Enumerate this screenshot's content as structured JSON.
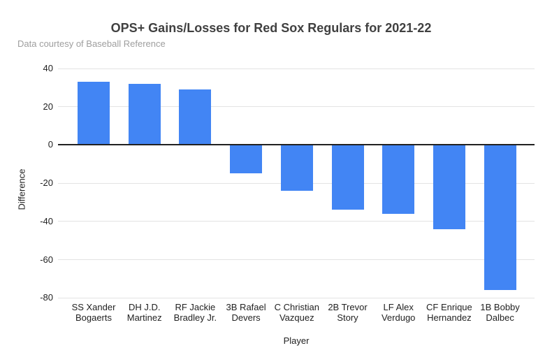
{
  "chart_data": {
    "type": "bar",
    "title": "OPS+ Gains/Losses for Red Sox Regulars for 2021-22",
    "subtitle": "Data courtesy of Baseball Reference",
    "categories": [
      "SS Xander Bogaerts",
      "DH J.D. Martinez",
      "RF Jackie Bradley Jr.",
      "3B Rafael Devers",
      "C Christian Vazquez",
      "2B Trevor Story",
      "LF Alex Verdugo",
      "CF Enrique Hernandez",
      "1B Bobby Dalbec"
    ],
    "values": [
      33,
      32,
      29,
      -15,
      -24,
      -34,
      -36,
      -44,
      -76
    ],
    "xlabel": "Player",
    "ylabel": "Difference",
    "ylim": [
      -80,
      40
    ],
    "yticks": [
      40,
      20,
      0,
      -20,
      -40,
      -60,
      -80
    ],
    "grid": true,
    "legend": "none",
    "bar_color": "#4285f4",
    "colors": {
      "title": "#404040",
      "subtitle": "#9e9e9e",
      "tick_labels": "#222222",
      "gridline": "#e3e3e3",
      "zero_line": "#212121",
      "background": "#ffffff"
    }
  }
}
